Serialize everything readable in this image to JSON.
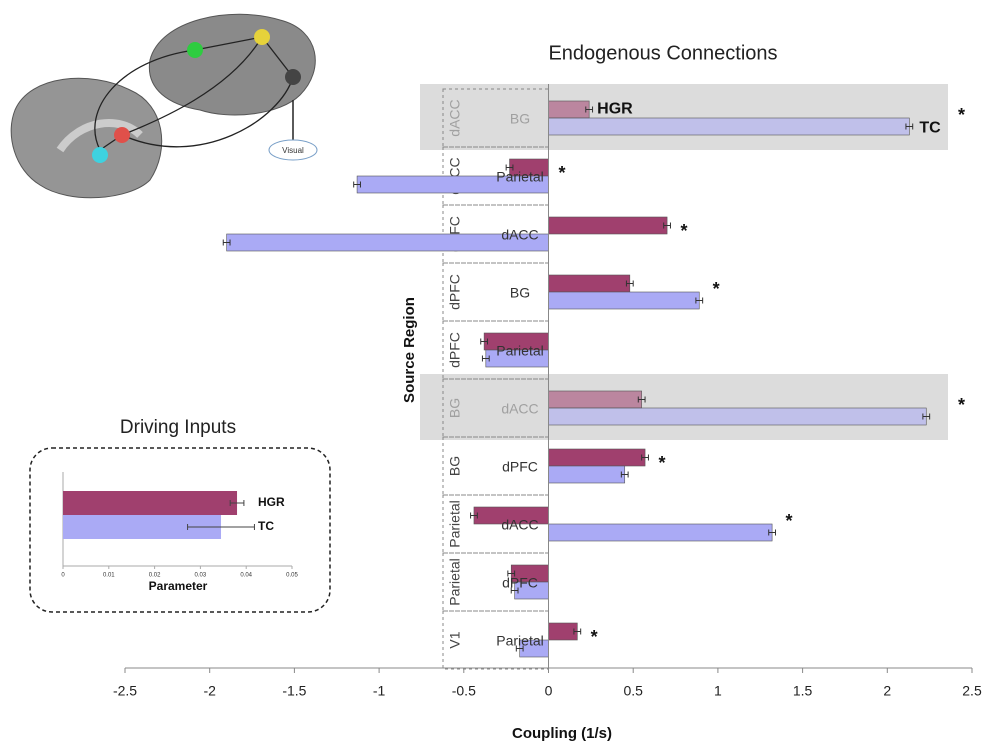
{
  "image_labels": {
    "visual": "Visual"
  },
  "chart_data": [
    {
      "type": "bar",
      "orientation": "horizontal",
      "title": "Endogenous Connections",
      "xlabel": "Coupling (1/s)",
      "ylabel": "Source Region",
      "sources": [
        "dACC",
        "dACC",
        "dPFC",
        "dPFC",
        "dPFC",
        "BG",
        "BG",
        "Parietal",
        "Parietal",
        "V1"
      ],
      "categories": [
        "BG",
        "Parietal",
        "dACC",
        "BG",
        "Parietal",
        "dACC",
        "dPFC",
        "dACC",
        "dPFC",
        "Parietal"
      ],
      "highlight": [
        true,
        false,
        false,
        false,
        false,
        true,
        false,
        false,
        false,
        false
      ],
      "markers": [
        "*",
        "*",
        "*",
        "*",
        null,
        "*",
        "*",
        "*",
        null,
        "*"
      ],
      "series": [
        {
          "name": "HGR",
          "color": "#a0406e",
          "values": [
            0.24,
            -0.23,
            0.7,
            0.48,
            -0.38,
            0.55,
            0.57,
            -0.44,
            -0.22,
            0.17
          ],
          "errors": [
            0.02,
            0.02,
            0.02,
            0.02,
            0.02,
            0.02,
            0.02,
            0.02,
            0.02,
            0.02
          ]
        },
        {
          "name": "TC",
          "color": "#aaaaf5",
          "values": [
            2.13,
            -1.13,
            -1.9,
            0.89,
            -0.37,
            2.23,
            0.45,
            1.32,
            -0.2,
            -0.17
          ],
          "errors": [
            0.02,
            0.02,
            0.02,
            0.02,
            0.02,
            0.02,
            0.02,
            0.02,
            0.02,
            0.02
          ]
        }
      ],
      "xlim": [
        -2.5,
        2.5
      ],
      "xticks": [
        -2.5,
        -2,
        -1.5,
        -1,
        -0.5,
        0,
        0.5,
        1,
        1.5,
        2,
        2.5
      ]
    },
    {
      "type": "bar",
      "orientation": "horizontal",
      "title": "Driving Inputs",
      "xlabel": "Parameter",
      "series": [
        {
          "name": "HGR",
          "color": "#a0406e",
          "values": [
            0.038
          ],
          "errors": [
            0.0015
          ]
        },
        {
          "name": "TC",
          "color": "#aaaaf5",
          "values": [
            0.0345
          ],
          "errors": [
            0.0073
          ]
        }
      ],
      "xlim": [
        0,
        0.05
      ],
      "xticks": [
        0,
        0.01,
        0.02,
        0.03,
        0.04,
        0.05
      ]
    }
  ]
}
